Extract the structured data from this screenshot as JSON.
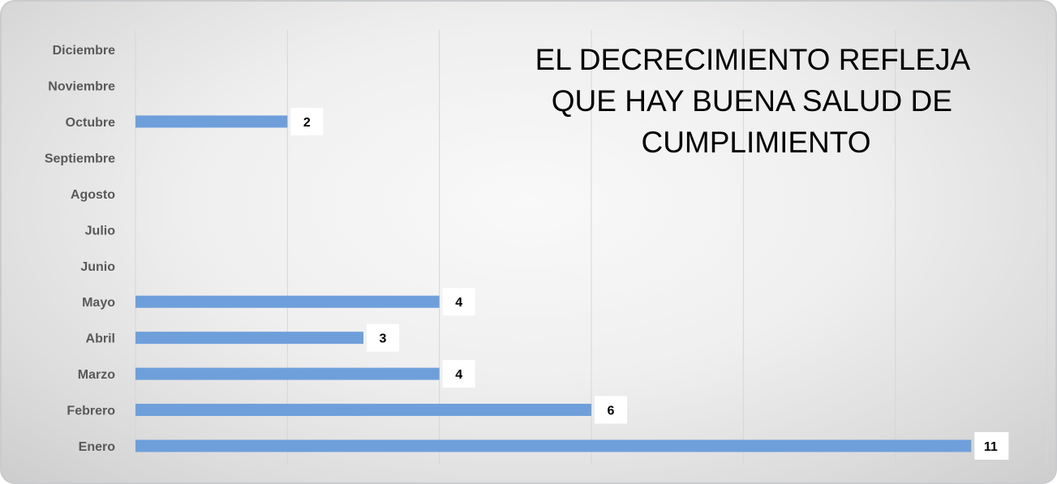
{
  "chart_data": {
    "type": "bar",
    "orientation": "horizontal",
    "title_lines": [
      "EL DECRECIMIENTO REFLEJA",
      "QUE HAY BUENA SALUD DE",
      "CUMPLIMIENTO"
    ],
    "categories": [
      "Enero",
      "Febrero",
      "Marzo",
      "Abril",
      "Mayo",
      "Junio",
      "Julio",
      "Agosto",
      "Septiembre",
      "Octubre",
      "Noviembre",
      "Diciembre"
    ],
    "values": [
      11,
      6,
      4,
      3,
      4,
      null,
      null,
      null,
      null,
      2,
      null,
      null
    ],
    "xlim": [
      0,
      12
    ],
    "x_gridlines": [
      0,
      2,
      4,
      6,
      8,
      10,
      12
    ],
    "grid": true,
    "legend": "none",
    "data_labels": true
  },
  "colors": {
    "bar": "#6f9fdb",
    "grid": "#d6d6d6",
    "label_bg": "#ffffff"
  }
}
